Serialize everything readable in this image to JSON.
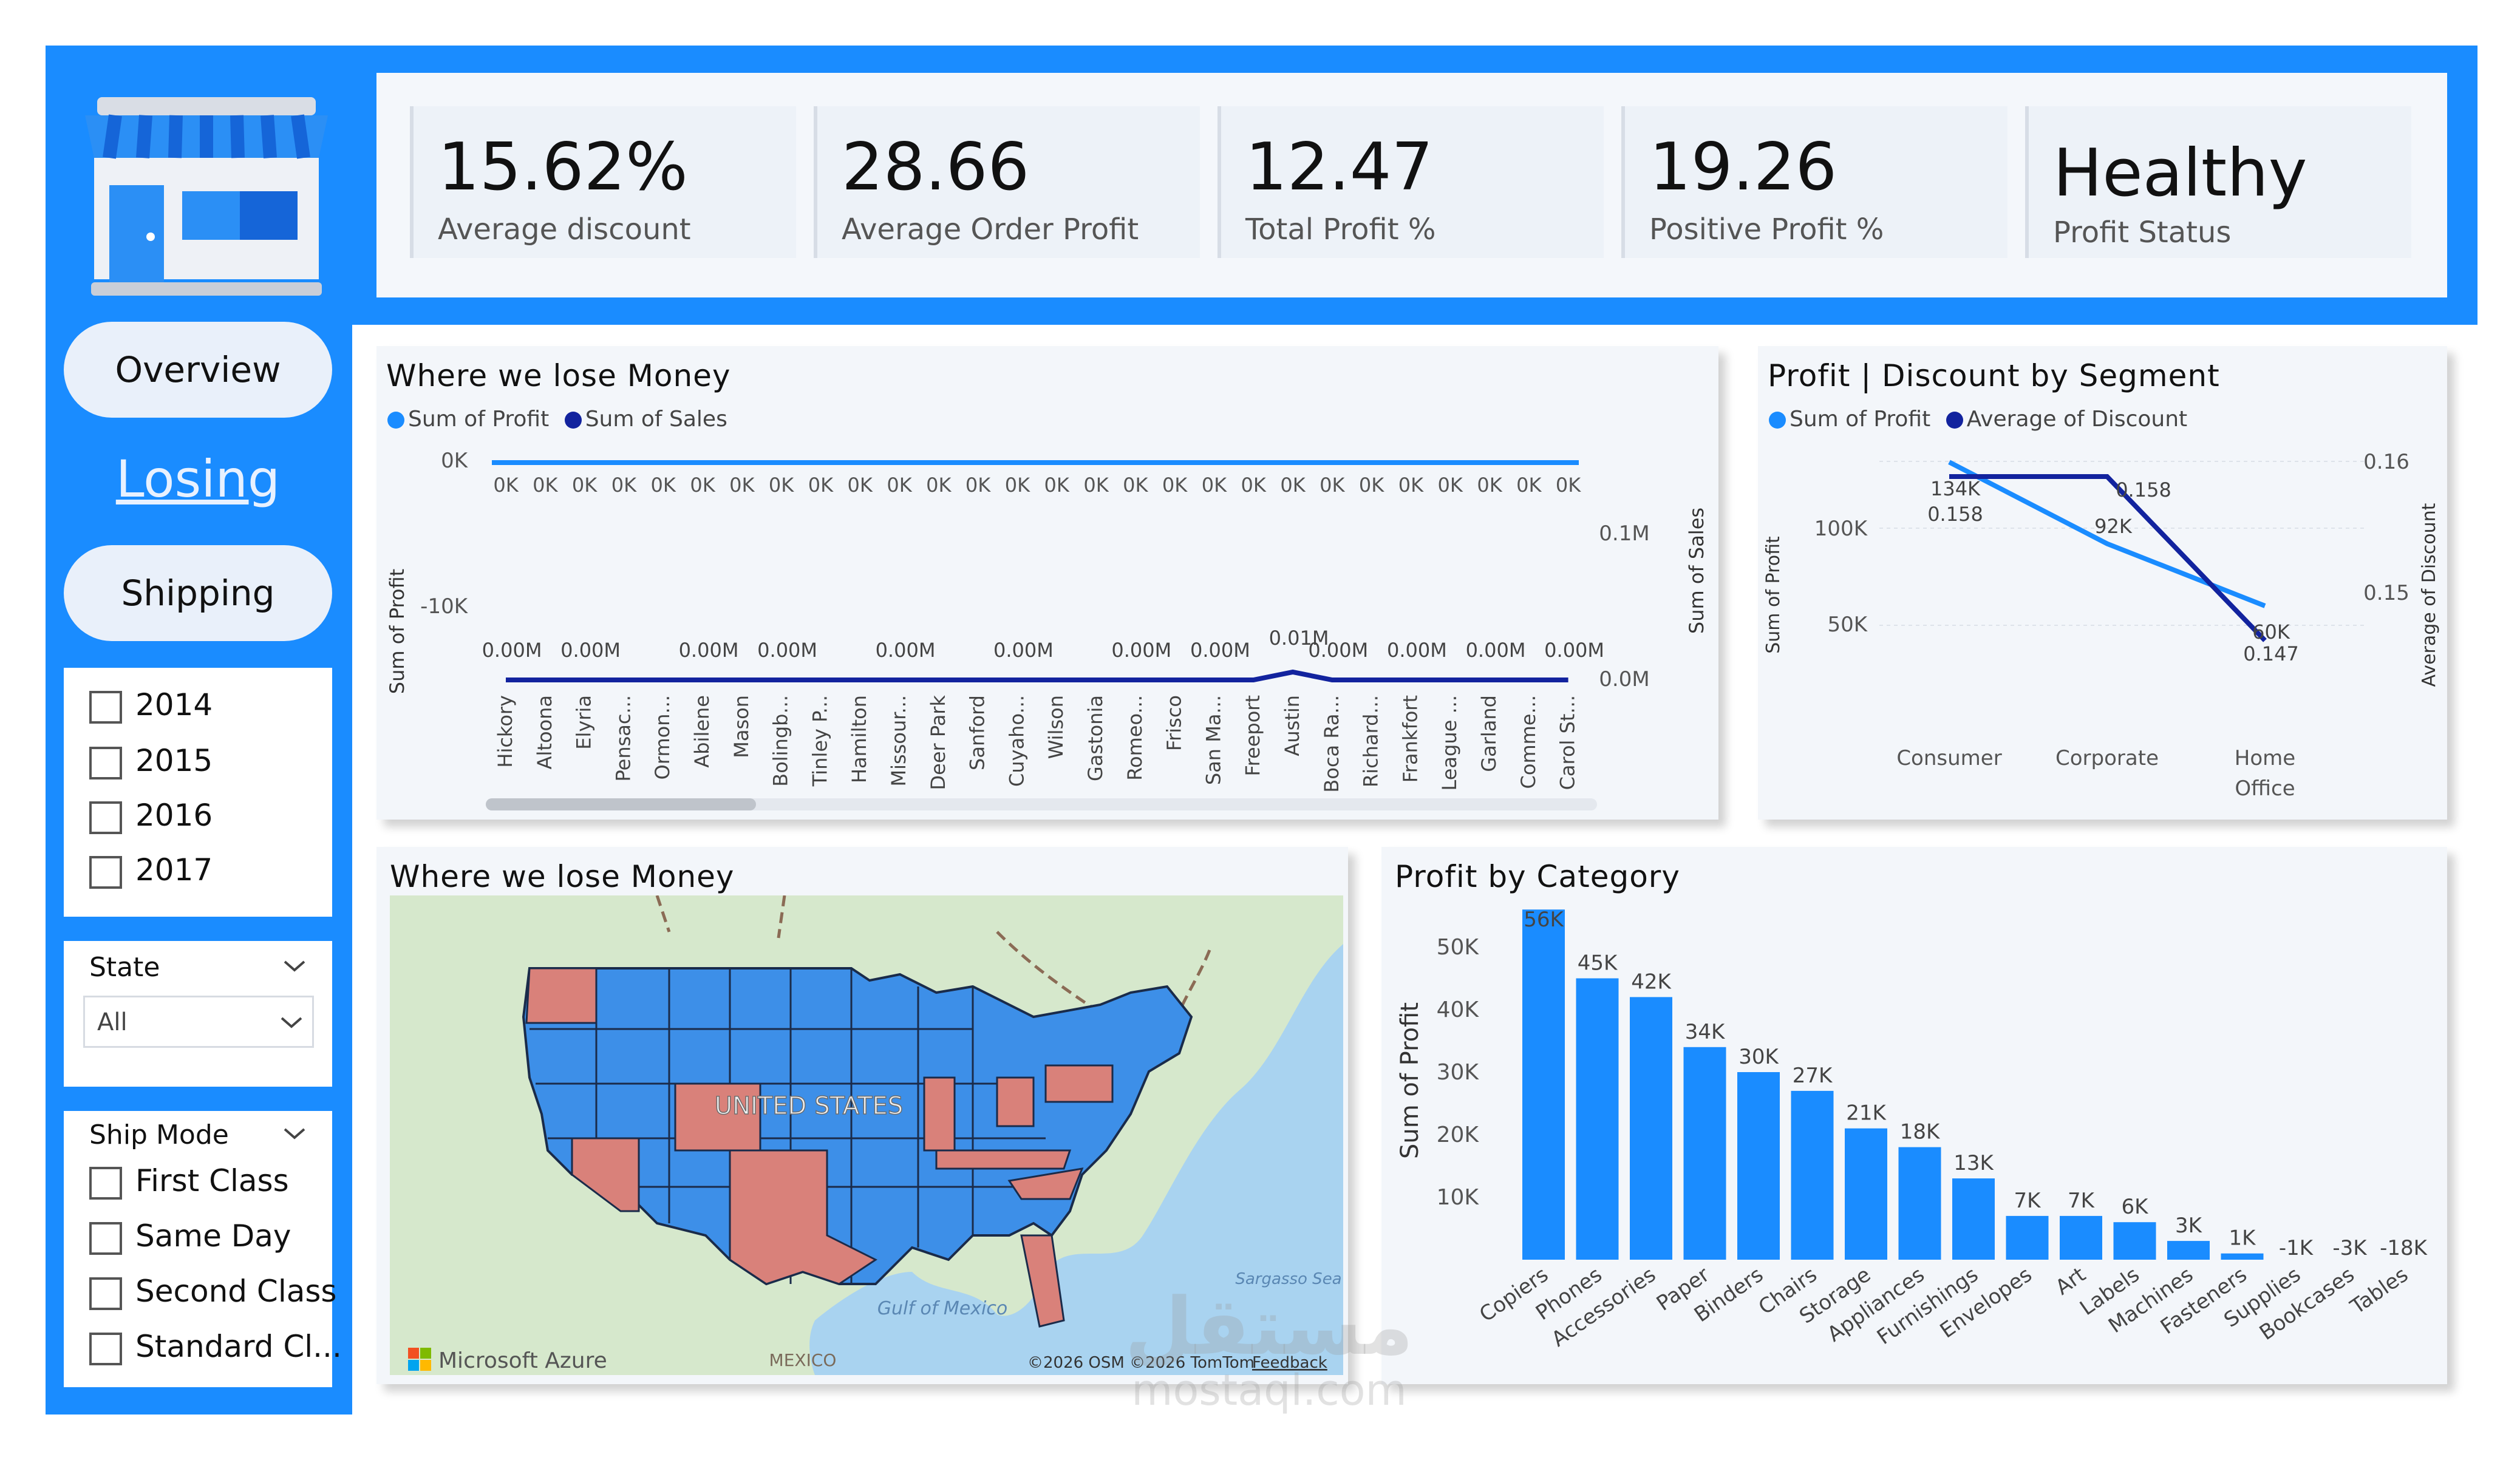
{
  "kpis": [
    {
      "value": "15.62%",
      "label": "Average discount"
    },
    {
      "value": "28.66",
      "label": "Average Order Profit"
    },
    {
      "value": "12.47",
      "label": "Total Profit %"
    },
    {
      "value": "19.26",
      "label": "Positive Profit %"
    },
    {
      "value": "Healthy",
      "label": "Profit Status"
    }
  ],
  "nav": {
    "overview": "Overview",
    "losing": "Losing",
    "shipping": "Shipping"
  },
  "years": [
    "2014",
    "2015",
    "2016",
    "2017"
  ],
  "state_filter": {
    "title": "State",
    "value": "All"
  },
  "ship_mode": {
    "title": "Ship Mode",
    "options": [
      "First Class",
      "Same Day",
      "Second Class",
      "Standard Cl..."
    ]
  },
  "colors": {
    "frame": "#1a8cff",
    "profit": "#1a8cff",
    "sales": "#12239e",
    "loss_region": "#d9817a"
  },
  "losing_chart": {
    "title": "Where we lose Money",
    "legend": [
      "Sum of Profit",
      "Sum of Sales"
    ],
    "y_left_label": "Sum of Profit",
    "y_right_label": "Sum of Sales",
    "left_ticks": [
      "0K",
      "-10K"
    ],
    "right_ticks": [
      "0.1M",
      "0.0M"
    ],
    "profit_label": "0K",
    "cities": [
      "Hickory",
      "Altoona",
      "Elyria",
      "Pensac...",
      "Ormon...",
      "Abilene",
      "Mason",
      "Bolingb...",
      "Tinley P...",
      "Hamilton",
      "Missour...",
      "Deer Park",
      "Sanford",
      "Cuyaho...",
      "Wilson",
      "Gastonia",
      "Romeo...",
      "Frisco",
      "San Ma...",
      "Freeport",
      "Austin",
      "Boca Ra...",
      "Richard...",
      "Frankfort",
      "League ...",
      "Garland",
      "Comme...",
      "Carol St..."
    ],
    "sales_labels": [
      {
        "i": 0,
        "text": "0.00M"
      },
      {
        "i": 2,
        "text": "0.00M"
      },
      {
        "i": 5,
        "text": "0.00M"
      },
      {
        "i": 7,
        "text": "0.00M"
      },
      {
        "i": 10,
        "text": "0.00M"
      },
      {
        "i": 13,
        "text": "0.00M"
      },
      {
        "i": 16,
        "text": "0.00M"
      },
      {
        "i": 18,
        "text": "0.00M"
      },
      {
        "i": 20,
        "text": "0.01M"
      },
      {
        "i": 21,
        "text": "0.00M"
      },
      {
        "i": 23,
        "text": "0.00M"
      },
      {
        "i": 25,
        "text": "0.00M"
      },
      {
        "i": 27,
        "text": "0.00M"
      }
    ]
  },
  "segment_chart": {
    "title": "Profit | Discount by Segment",
    "legend": [
      "Sum of Profit",
      "Average of Discount"
    ],
    "y_left_label": "Sum of Profit",
    "y_right_label": "Average of Discount",
    "left_ticks": [
      "100K",
      "50K"
    ],
    "right_ticks": [
      "0.16",
      "0.15"
    ],
    "categories": [
      "Consumer",
      "Corporate",
      "Home Office"
    ],
    "profit": [
      134,
      92,
      60
    ],
    "profit_labels": [
      "134K",
      "92K",
      "60K"
    ],
    "discount": [
      0.158,
      0.158,
      0.147
    ],
    "discount_labels": [
      "0.158",
      "0.158",
      "0.147"
    ]
  },
  "map": {
    "title": "Where we lose Money",
    "country_label": "UNITED STATES",
    "labels": [
      "Gulf of Mexico",
      "MEXICO",
      "Sargasso Sea"
    ],
    "brand": "Microsoft Azure",
    "attribution": "©2026 OSM  ©2026 TomTom",
    "feedback": "Feedback"
  },
  "category_chart": {
    "title": "Profit by Category",
    "ylabel": "Sum of Profit",
    "y_ticks": [
      "50K",
      "40K",
      "30K",
      "20K",
      "10K"
    ],
    "type": "bar"
  },
  "chart_data": [
    {
      "type": "bar",
      "title": "Profit by Category",
      "ylabel": "Sum of Profit",
      "categories": [
        "Copiers",
        "Phones",
        "Accessories",
        "Paper",
        "Binders",
        "Chairs",
        "Storage",
        "Appliances",
        "Furnishings",
        "Envelopes",
        "Art",
        "Labels",
        "Machines",
        "Fasteners",
        "Supplies",
        "Bookcases",
        "Tables"
      ],
      "values": [
        56,
        45,
        42,
        34,
        30,
        27,
        21,
        18,
        13,
        7,
        7,
        6,
        3,
        1,
        -1,
        -3,
        -18
      ],
      "labels": [
        "56K",
        "45K",
        "42K",
        "34K",
        "30K",
        "27K",
        "21K",
        "18K",
        "13K",
        "7K",
        "7K",
        "6K",
        "3K",
        "1K",
        "-1K",
        "-3K",
        "-18K"
      ]
    },
    {
      "type": "line",
      "title": "Profit | Discount by Segment",
      "categories": [
        "Consumer",
        "Corporate",
        "Home Office"
      ],
      "series": [
        {
          "name": "Sum of Profit",
          "values": [
            134,
            92,
            60
          ]
        },
        {
          "name": "Average of Discount",
          "values": [
            0.158,
            0.158,
            0.147
          ]
        }
      ]
    }
  ],
  "watermark": {
    "line1": "مستقل",
    "line2": "mostaql.com"
  }
}
